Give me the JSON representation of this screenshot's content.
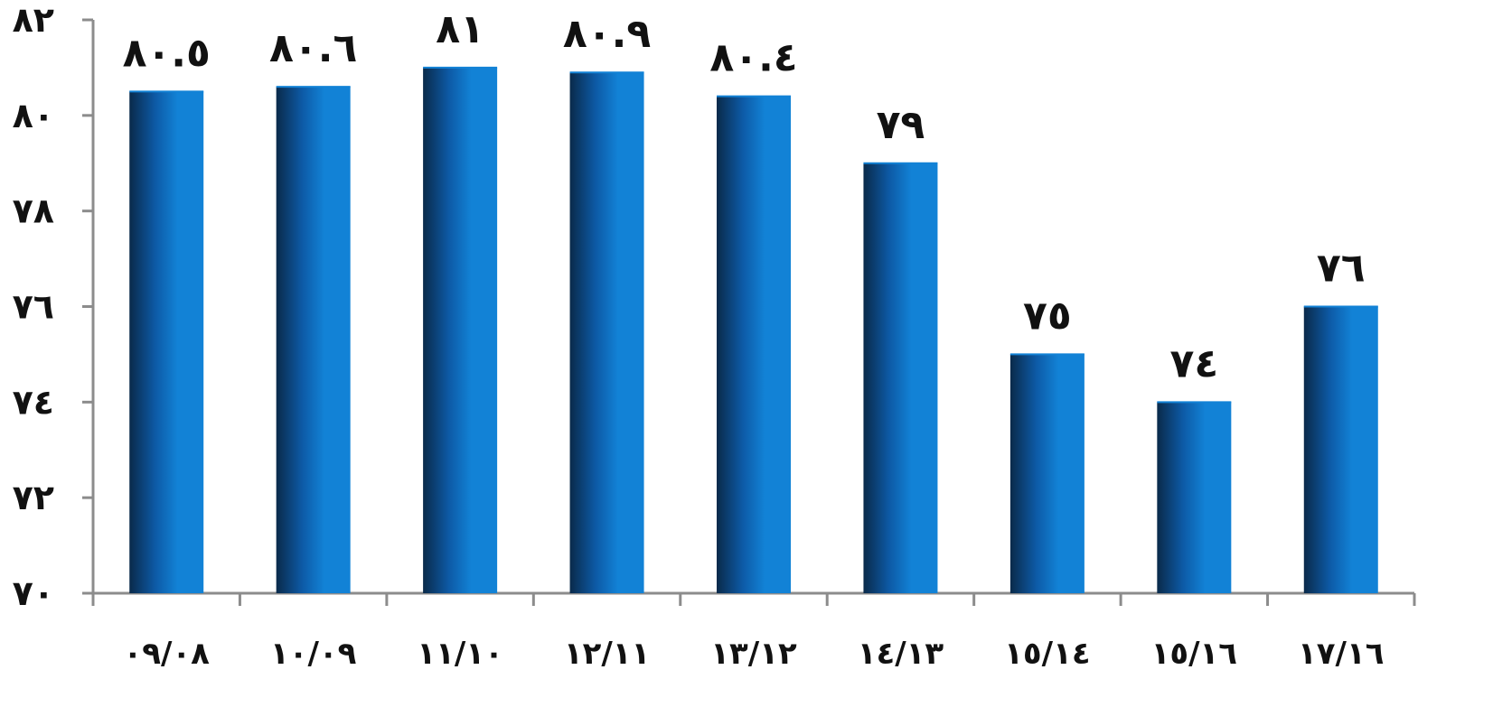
{
  "chart_data": {
    "type": "bar",
    "title": "",
    "xlabel": "",
    "ylabel": "",
    "categories": [
      "٠٩/٠٨",
      "١٠/٠٩",
      "١١/١٠",
      "١٢/١١",
      "١٣/١٢",
      "١٤/١٣",
      "١٥/١٤",
      "١٥/١٦",
      "١٧/١٦"
    ],
    "values": [
      80.5,
      80.6,
      81,
      80.9,
      80.4,
      79,
      75,
      74,
      76
    ],
    "data_labels": [
      "٨٠.٥",
      "٨٠.٦",
      "٨١",
      "٨٠.٩",
      "٨٠.٤",
      "٧٩",
      "٧٥",
      "٧٤",
      "٧٦"
    ],
    "ylim": [
      70,
      82
    ],
    "yticks": [
      70,
      72,
      74,
      76,
      78,
      80,
      82
    ],
    "ytick_labels": [
      "٧٠",
      "٧٢",
      "٧٤",
      "٧٦",
      "٧٨",
      "٨٠",
      "٨٢"
    ],
    "grid": false,
    "legend": "none",
    "colors": {
      "bar_dark": "#0a2a4a",
      "bar_mid": "#0d5aa6",
      "bar_light": "#1282d6",
      "axis": "#8c8c8c"
    }
  }
}
